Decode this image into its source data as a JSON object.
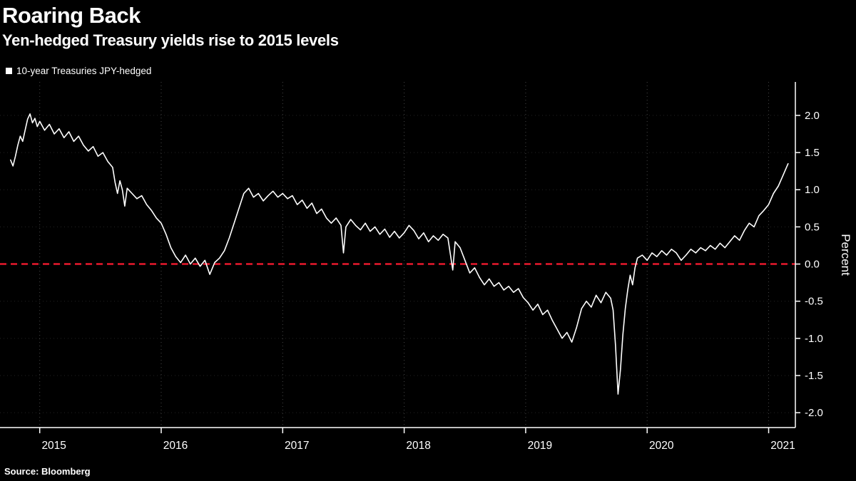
{
  "header": {
    "title": "Roaring Back",
    "subtitle": "Yen-hedged Treasury yields rise to 2015 levels"
  },
  "legend": {
    "label": "10-year Treasuries JPY-hedged",
    "swatch_color": "#ffffff"
  },
  "footer": {
    "source": "Source: Bloomberg"
  },
  "colors": {
    "background": "#000000",
    "line": "#ffffff",
    "zero_line": "#e8192c",
    "axis": "#ffffff"
  },
  "chart_data": {
    "type": "line",
    "title": "Roaring Back",
    "subtitle": "Yen-hedged Treasury yields rise to 2015 levels",
    "ylabel": "Percent",
    "xlabel": "",
    "xlim": [
      2014.72,
      2021.22
    ],
    "ylim": [
      -2.2,
      2.45
    ],
    "x_ticks": [
      2015,
      2016,
      2017,
      2018,
      2019,
      2020,
      2021
    ],
    "y_ticks": [
      2.0,
      1.5,
      1.0,
      0.5,
      0.0,
      -0.5,
      -1.0,
      -1.5,
      -2.0
    ],
    "grid": true,
    "legend_position": "top-left",
    "reference_line": {
      "y": 0.0,
      "color": "#e8192c",
      "style": "dashed"
    },
    "series": [
      {
        "name": "10-year Treasuries JPY-hedged",
        "color": "#ffffff",
        "points": [
          [
            2014.76,
            1.4
          ],
          [
            2014.78,
            1.32
          ],
          [
            2014.8,
            1.45
          ],
          [
            2014.82,
            1.6
          ],
          [
            2014.84,
            1.72
          ],
          [
            2014.86,
            1.65
          ],
          [
            2014.88,
            1.8
          ],
          [
            2014.9,
            1.95
          ],
          [
            2014.92,
            2.02
          ],
          [
            2014.94,
            1.9
          ],
          [
            2014.96,
            1.96
          ],
          [
            2014.98,
            1.85
          ],
          [
            2015.0,
            1.92
          ],
          [
            2015.04,
            1.8
          ],
          [
            2015.08,
            1.88
          ],
          [
            2015.12,
            1.75
          ],
          [
            2015.16,
            1.82
          ],
          [
            2015.2,
            1.7
          ],
          [
            2015.24,
            1.78
          ],
          [
            2015.28,
            1.65
          ],
          [
            2015.32,
            1.72
          ],
          [
            2015.36,
            1.6
          ],
          [
            2015.4,
            1.52
          ],
          [
            2015.44,
            1.58
          ],
          [
            2015.48,
            1.45
          ],
          [
            2015.52,
            1.5
          ],
          [
            2015.56,
            1.38
          ],
          [
            2015.6,
            1.3
          ],
          [
            2015.62,
            1.1
          ],
          [
            2015.64,
            0.95
          ],
          [
            2015.66,
            1.12
          ],
          [
            2015.68,
            1.0
          ],
          [
            2015.7,
            0.78
          ],
          [
            2015.72,
            1.02
          ],
          [
            2015.76,
            0.95
          ],
          [
            2015.8,
            0.88
          ],
          [
            2015.84,
            0.92
          ],
          [
            2015.88,
            0.8
          ],
          [
            2015.92,
            0.72
          ],
          [
            2015.96,
            0.62
          ],
          [
            2016.0,
            0.55
          ],
          [
            2016.04,
            0.4
          ],
          [
            2016.08,
            0.22
          ],
          [
            2016.12,
            0.1
          ],
          [
            2016.16,
            0.02
          ],
          [
            2016.2,
            0.12
          ],
          [
            2016.24,
            0.0
          ],
          [
            2016.28,
            0.08
          ],
          [
            2016.32,
            -0.03
          ],
          [
            2016.36,
            0.05
          ],
          [
            2016.4,
            -0.14
          ],
          [
            2016.44,
            0.02
          ],
          [
            2016.48,
            0.08
          ],
          [
            2016.52,
            0.18
          ],
          [
            2016.56,
            0.35
          ],
          [
            2016.6,
            0.55
          ],
          [
            2016.64,
            0.75
          ],
          [
            2016.68,
            0.95
          ],
          [
            2016.72,
            1.02
          ],
          [
            2016.76,
            0.9
          ],
          [
            2016.8,
            0.95
          ],
          [
            2016.84,
            0.85
          ],
          [
            2016.88,
            0.92
          ],
          [
            2016.92,
            0.98
          ],
          [
            2016.96,
            0.9
          ],
          [
            2017.0,
            0.95
          ],
          [
            2017.04,
            0.88
          ],
          [
            2017.08,
            0.92
          ],
          [
            2017.12,
            0.8
          ],
          [
            2017.16,
            0.86
          ],
          [
            2017.2,
            0.75
          ],
          [
            2017.24,
            0.82
          ],
          [
            2017.28,
            0.68
          ],
          [
            2017.32,
            0.74
          ],
          [
            2017.36,
            0.62
          ],
          [
            2017.4,
            0.55
          ],
          [
            2017.44,
            0.62
          ],
          [
            2017.48,
            0.52
          ],
          [
            2017.5,
            0.15
          ],
          [
            2017.52,
            0.5
          ],
          [
            2017.56,
            0.6
          ],
          [
            2017.6,
            0.52
          ],
          [
            2017.64,
            0.46
          ],
          [
            2017.68,
            0.55
          ],
          [
            2017.72,
            0.44
          ],
          [
            2017.76,
            0.5
          ],
          [
            2017.8,
            0.4
          ],
          [
            2017.84,
            0.47
          ],
          [
            2017.88,
            0.36
          ],
          [
            2017.92,
            0.44
          ],
          [
            2017.96,
            0.35
          ],
          [
            2018.0,
            0.42
          ],
          [
            2018.04,
            0.52
          ],
          [
            2018.08,
            0.45
          ],
          [
            2018.12,
            0.34
          ],
          [
            2018.16,
            0.42
          ],
          [
            2018.2,
            0.3
          ],
          [
            2018.24,
            0.38
          ],
          [
            2018.28,
            0.32
          ],
          [
            2018.32,
            0.4
          ],
          [
            2018.36,
            0.35
          ],
          [
            2018.4,
            -0.08
          ],
          [
            2018.42,
            0.3
          ],
          [
            2018.46,
            0.22
          ],
          [
            2018.5,
            0.05
          ],
          [
            2018.54,
            -0.12
          ],
          [
            2018.58,
            -0.05
          ],
          [
            2018.62,
            -0.18
          ],
          [
            2018.66,
            -0.28
          ],
          [
            2018.7,
            -0.2
          ],
          [
            2018.74,
            -0.3
          ],
          [
            2018.78,
            -0.25
          ],
          [
            2018.82,
            -0.35
          ],
          [
            2018.86,
            -0.3
          ],
          [
            2018.9,
            -0.38
          ],
          [
            2018.94,
            -0.33
          ],
          [
            2018.98,
            -0.45
          ],
          [
            2019.02,
            -0.52
          ],
          [
            2019.06,
            -0.62
          ],
          [
            2019.1,
            -0.54
          ],
          [
            2019.14,
            -0.68
          ],
          [
            2019.18,
            -0.62
          ],
          [
            2019.22,
            -0.76
          ],
          [
            2019.26,
            -0.88
          ],
          [
            2019.3,
            -1.0
          ],
          [
            2019.34,
            -0.92
          ],
          [
            2019.38,
            -1.05
          ],
          [
            2019.42,
            -0.85
          ],
          [
            2019.46,
            -0.6
          ],
          [
            2019.5,
            -0.5
          ],
          [
            2019.54,
            -0.58
          ],
          [
            2019.58,
            -0.42
          ],
          [
            2019.62,
            -0.52
          ],
          [
            2019.66,
            -0.38
          ],
          [
            2019.7,
            -0.46
          ],
          [
            2019.72,
            -0.62
          ],
          [
            2019.74,
            -1.1
          ],
          [
            2019.76,
            -1.75
          ],
          [
            2019.78,
            -1.42
          ],
          [
            2019.8,
            -0.95
          ],
          [
            2019.82,
            -0.6
          ],
          [
            2019.84,
            -0.35
          ],
          [
            2019.86,
            -0.15
          ],
          [
            2019.88,
            -0.28
          ],
          [
            2019.9,
            -0.05
          ],
          [
            2019.92,
            0.08
          ],
          [
            2019.96,
            0.12
          ],
          [
            2020.0,
            0.05
          ],
          [
            2020.04,
            0.15
          ],
          [
            2020.08,
            0.1
          ],
          [
            2020.12,
            0.18
          ],
          [
            2020.16,
            0.12
          ],
          [
            2020.2,
            0.2
          ],
          [
            2020.24,
            0.15
          ],
          [
            2020.28,
            0.05
          ],
          [
            2020.32,
            0.12
          ],
          [
            2020.36,
            0.2
          ],
          [
            2020.4,
            0.15
          ],
          [
            2020.44,
            0.22
          ],
          [
            2020.48,
            0.18
          ],
          [
            2020.52,
            0.25
          ],
          [
            2020.56,
            0.2
          ],
          [
            2020.6,
            0.28
          ],
          [
            2020.64,
            0.22
          ],
          [
            2020.68,
            0.3
          ],
          [
            2020.72,
            0.38
          ],
          [
            2020.76,
            0.32
          ],
          [
            2020.8,
            0.45
          ],
          [
            2020.84,
            0.55
          ],
          [
            2020.88,
            0.5
          ],
          [
            2020.92,
            0.65
          ],
          [
            2020.96,
            0.72
          ],
          [
            2021.0,
            0.8
          ],
          [
            2021.04,
            0.95
          ],
          [
            2021.08,
            1.05
          ],
          [
            2021.12,
            1.2
          ],
          [
            2021.16,
            1.35
          ]
        ]
      }
    ],
    "source": "Source: Bloomberg"
  }
}
